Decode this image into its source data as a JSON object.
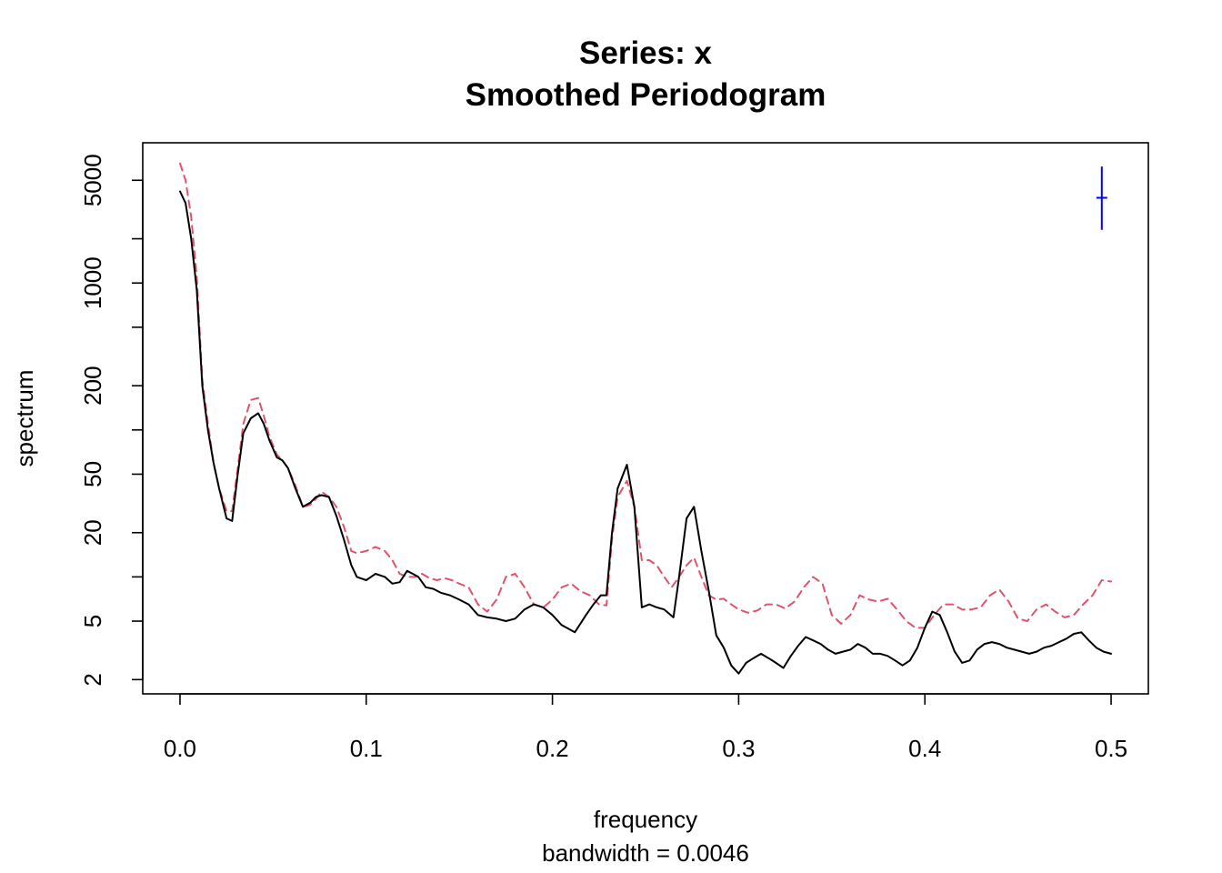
{
  "chart_data": {
    "type": "line",
    "title": "Series: x",
    "subtitle": "Smoothed Periodogram",
    "xlabel": "frequency",
    "xlabel_sub": "bandwidth = 0.0046",
    "ylabel": "spectrum",
    "log_y": true,
    "xlim": [
      -0.02,
      0.52
    ],
    "ylim": [
      1.6,
      9000
    ],
    "x_ticks": [
      0.0,
      0.1,
      0.2,
      0.3,
      0.4,
      0.5
    ],
    "x_tick_labels": [
      "0.0",
      "0.1",
      "0.2",
      "0.3",
      "0.4",
      "0.5"
    ],
    "y_ticks": [
      2,
      5,
      10,
      20,
      50,
      100,
      200,
      500,
      1000,
      2000,
      5000
    ],
    "y_tick_labels": [
      "2",
      "5",
      "",
      "20",
      "50",
      "",
      "200",
      "",
      "1000",
      "",
      "5000"
    ],
    "grid": false,
    "series": [
      {
        "color": "#000000",
        "dash": "solid",
        "x": [
          0.0,
          0.003,
          0.006,
          0.009,
          0.012,
          0.015,
          0.018,
          0.021,
          0.025,
          0.028,
          0.031,
          0.034,
          0.038,
          0.042,
          0.045,
          0.048,
          0.052,
          0.055,
          0.058,
          0.062,
          0.066,
          0.07,
          0.073,
          0.076,
          0.08,
          0.084,
          0.088,
          0.092,
          0.095,
          0.1,
          0.105,
          0.11,
          0.114,
          0.118,
          0.122,
          0.125,
          0.128,
          0.132,
          0.136,
          0.14,
          0.145,
          0.15,
          0.155,
          0.16,
          0.165,
          0.17,
          0.175,
          0.18,
          0.185,
          0.19,
          0.195,
          0.2,
          0.205,
          0.212,
          0.218,
          0.222,
          0.226,
          0.229,
          0.232,
          0.235,
          0.24,
          0.244,
          0.248,
          0.252,
          0.256,
          0.26,
          0.265,
          0.268,
          0.272,
          0.276,
          0.28,
          0.284,
          0.288,
          0.292,
          0.296,
          0.3,
          0.304,
          0.308,
          0.312,
          0.316,
          0.32,
          0.324,
          0.328,
          0.332,
          0.336,
          0.34,
          0.344,
          0.348,
          0.352,
          0.356,
          0.36,
          0.364,
          0.368,
          0.372,
          0.376,
          0.38,
          0.384,
          0.388,
          0.392,
          0.396,
          0.4,
          0.404,
          0.408,
          0.412,
          0.416,
          0.42,
          0.424,
          0.428,
          0.432,
          0.436,
          0.44,
          0.444,
          0.448,
          0.452,
          0.456,
          0.46,
          0.464,
          0.468,
          0.472,
          0.476,
          0.48,
          0.484,
          0.488,
          0.492,
          0.496,
          0.5
        ],
        "y": [
          4200,
          3500,
          2000,
          900,
          200,
          100,
          60,
          40,
          25,
          24,
          50,
          95,
          120,
          130,
          110,
          85,
          65,
          62,
          55,
          40,
          30,
          32,
          35,
          36,
          35,
          26,
          18,
          12,
          10,
          9.5,
          10.5,
          10,
          9,
          9.2,
          11,
          10.5,
          10,
          8.5,
          8.3,
          7.8,
          7.5,
          7,
          6.5,
          5.5,
          5.3,
          5.2,
          5,
          5.2,
          6,
          6.5,
          6.2,
          5.5,
          4.7,
          4.2,
          5.5,
          6.5,
          7.5,
          7.5,
          20,
          40,
          58,
          30,
          6.2,
          6.5,
          6.2,
          6,
          5.3,
          10,
          25,
          30,
          15,
          8,
          4,
          3.3,
          2.5,
          2.2,
          2.6,
          2.8,
          3.0,
          2.8,
          2.6,
          2.4,
          2.9,
          3.4,
          3.9,
          3.7,
          3.5,
          3.2,
          3.0,
          3.1,
          3.2,
          3.5,
          3.3,
          3.0,
          3.0,
          2.9,
          2.7,
          2.5,
          2.7,
          3.3,
          4.5,
          5.8,
          5.5,
          4.2,
          3.1,
          2.6,
          2.7,
          3.2,
          3.5,
          3.6,
          3.5,
          3.3,
          3.2,
          3.1,
          3.0,
          3.1,
          3.3,
          3.4,
          3.6,
          3.8,
          4.1,
          4.2,
          3.7,
          3.3,
          3.1,
          3.0
        ]
      },
      {
        "color": "#df536b",
        "dash": "dashed",
        "x": [
          0.0,
          0.003,
          0.006,
          0.009,
          0.012,
          0.015,
          0.018,
          0.021,
          0.025,
          0.028,
          0.031,
          0.034,
          0.038,
          0.042,
          0.045,
          0.048,
          0.052,
          0.055,
          0.058,
          0.062,
          0.066,
          0.07,
          0.073,
          0.076,
          0.08,
          0.084,
          0.088,
          0.092,
          0.095,
          0.1,
          0.105,
          0.11,
          0.114,
          0.118,
          0.122,
          0.126,
          0.13,
          0.134,
          0.138,
          0.142,
          0.146,
          0.15,
          0.155,
          0.16,
          0.165,
          0.17,
          0.175,
          0.18,
          0.185,
          0.19,
          0.195,
          0.2,
          0.205,
          0.21,
          0.215,
          0.22,
          0.225,
          0.229,
          0.232,
          0.235,
          0.24,
          0.244,
          0.248,
          0.252,
          0.256,
          0.26,
          0.264,
          0.268,
          0.272,
          0.276,
          0.28,
          0.284,
          0.288,
          0.292,
          0.296,
          0.3,
          0.305,
          0.31,
          0.315,
          0.32,
          0.325,
          0.33,
          0.335,
          0.34,
          0.345,
          0.35,
          0.355,
          0.36,
          0.365,
          0.37,
          0.375,
          0.38,
          0.385,
          0.39,
          0.395,
          0.4,
          0.405,
          0.41,
          0.415,
          0.42,
          0.425,
          0.43,
          0.435,
          0.44,
          0.445,
          0.45,
          0.455,
          0.46,
          0.465,
          0.47,
          0.475,
          0.48,
          0.485,
          0.49,
          0.495,
          0.5
        ],
        "y": [
          6500,
          5000,
          2800,
          1100,
          220,
          110,
          60,
          40,
          28,
          28,
          55,
          110,
          160,
          165,
          125,
          90,
          68,
          62,
          55,
          42,
          30,
          31,
          34,
          38,
          35,
          30,
          22,
          15,
          14.5,
          15,
          16,
          15,
          13,
          10.5,
          10,
          10,
          10.5,
          9.8,
          9.5,
          9.8,
          9.5,
          9,
          8.5,
          6.5,
          5.8,
          7,
          10,
          10.5,
          8.5,
          6.5,
          6.2,
          7,
          8.5,
          9,
          8,
          7.5,
          6.5,
          6.4,
          18,
          35,
          45,
          30,
          13,
          13,
          12,
          10,
          8.5,
          10,
          12,
          13.5,
          10,
          7.5,
          7.0,
          7.1,
          6.5,
          6.0,
          5.7,
          5.9,
          6.5,
          6.5,
          6.1,
          6.8,
          8.5,
          10,
          9,
          5.5,
          4.8,
          5.5,
          7.5,
          7.0,
          6.8,
          7.1,
          6.0,
          5.0,
          4.5,
          4.5,
          5.5,
          6.5,
          6.5,
          6.0,
          6.0,
          6.2,
          7.5,
          8.2,
          6.8,
          5.2,
          5.0,
          6.0,
          6.5,
          5.8,
          5.3,
          5.5,
          6.5,
          7.5,
          9.5,
          9.3
        ]
      }
    ],
    "ci_bar": {
      "color": "#0000ff",
      "x": 0.495,
      "center": 3800,
      "lower": 2300,
      "upper": 6200
    }
  }
}
